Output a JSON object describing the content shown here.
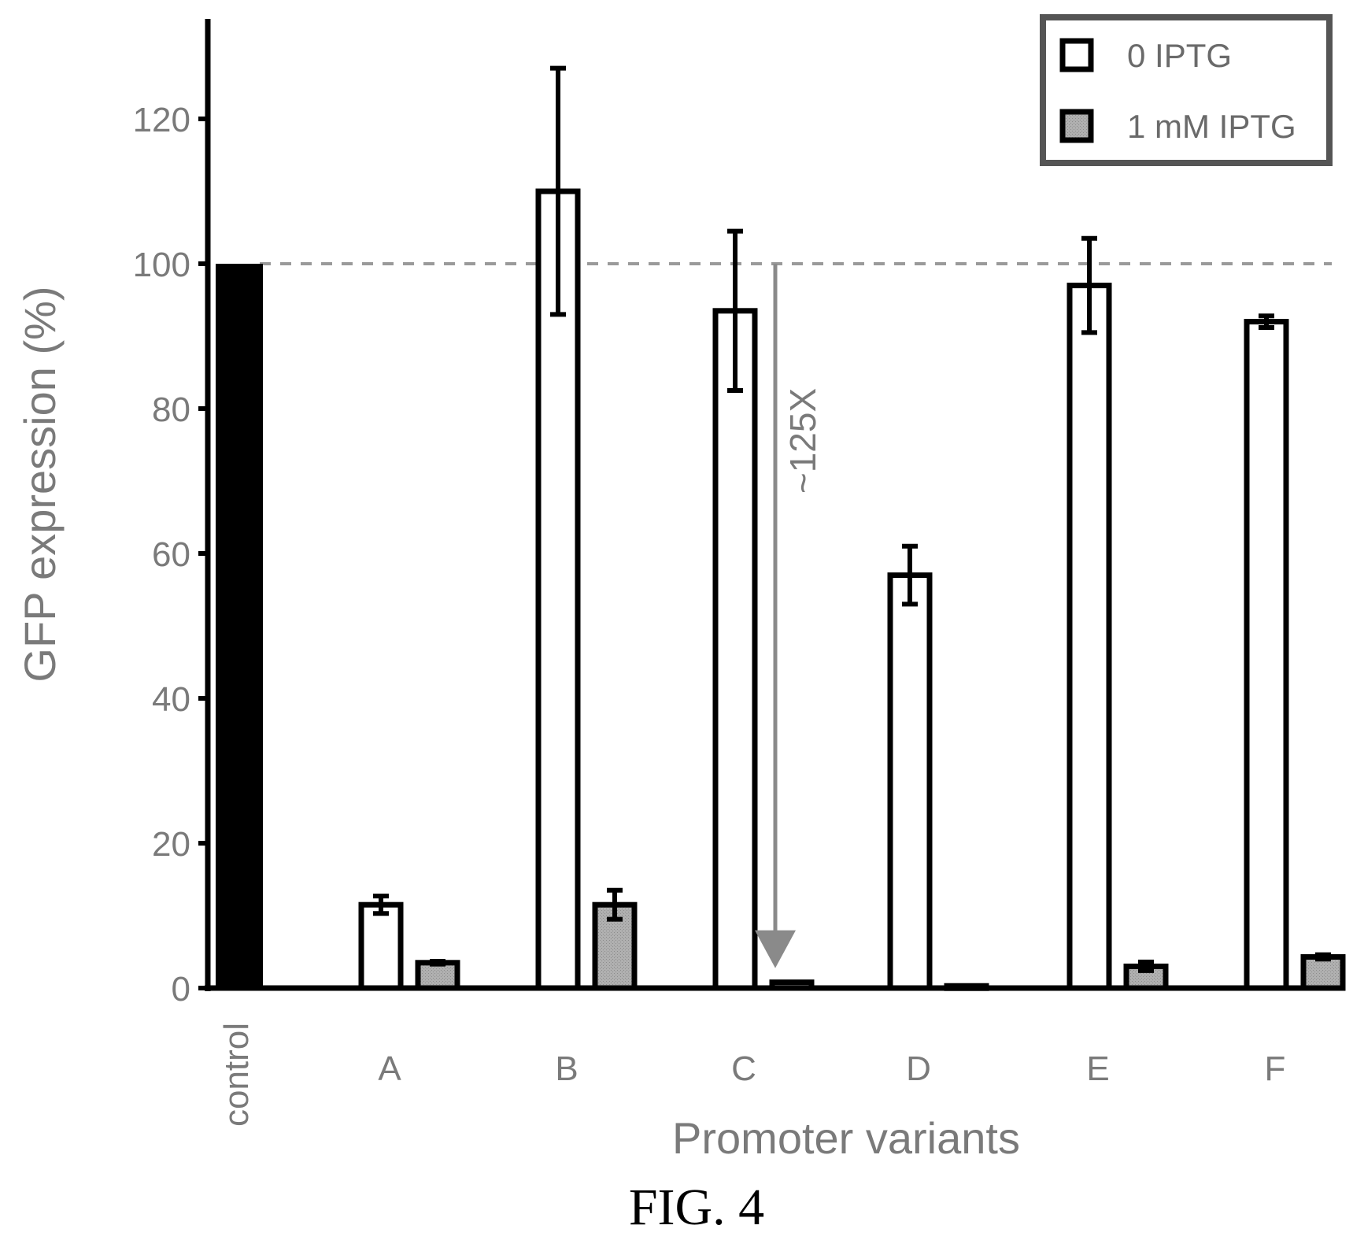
{
  "figure": {
    "caption": "FIG. 4"
  },
  "chart_data": {
    "type": "bar",
    "ylabel": "GFP expression (%)",
    "xlabel": "Promoter variants",
    "ylim": [
      0,
      132
    ],
    "yticks": [
      0,
      20,
      40,
      60,
      80,
      100,
      120
    ],
    "grid": false,
    "reference_line": {
      "value": 100,
      "style": "dashed"
    },
    "control": {
      "label": "control",
      "value": 100
    },
    "categories": [
      "A",
      "B",
      "C",
      "D",
      "E",
      "F"
    ],
    "series": [
      {
        "name": "0 IPTG",
        "values": [
          11.5,
          110,
          93.5,
          57,
          97,
          92
        ],
        "errors": [
          1.2,
          17,
          11,
          4,
          6.5,
          0.8
        ]
      },
      {
        "name": "1 mM IPTG",
        "values": [
          3.5,
          11.5,
          0.8,
          0.3,
          3,
          4.3
        ],
        "errors": [
          0.2,
          2,
          0.1,
          0.1,
          0.6,
          0.3
        ]
      }
    ],
    "legend": {
      "position": "top-right"
    },
    "annotations": [
      {
        "text": "~125X",
        "category": "C",
        "from": 100,
        "to": 0.8
      }
    ],
    "colors": {
      "control": "#000000",
      "series_0_fill": "#ffffff",
      "series_1_fill": "#a8a8a8",
      "text": "#7a7a7a",
      "reference": "#9a9a9a"
    }
  }
}
